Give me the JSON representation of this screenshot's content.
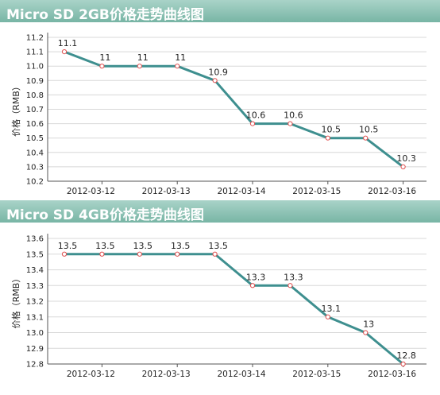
{
  "charts": [
    {
      "title": "Micro SD 2GB价格走势曲线图"
    },
    {
      "title": "Micro SD 4GB价格走势曲线图"
    }
  ],
  "colors": {
    "line": "#3e8f8f",
    "marker": "#e05050",
    "grid": "#d8d8d8",
    "axis": "#555555",
    "title_band": "#8cc4b6"
  },
  "chart_data": [
    {
      "type": "line",
      "title": "Micro SD 2GB价格走势曲线图",
      "xlabel": "",
      "ylabel": "价格（RMB）",
      "x_tick_labels": [
        "2012-03-12",
        "2012-03-13",
        "2012-03-14",
        "2012-03-15",
        "2012-03-16"
      ],
      "values": [
        11.1,
        11,
        11,
        11,
        10.9,
        10.6,
        10.6,
        10.5,
        10.5,
        10.3
      ],
      "value_labels": [
        "11.1",
        "11",
        "11",
        "11",
        "10.9",
        "10.6",
        "10.6",
        "10.5",
        "10.5",
        "10.3"
      ],
      "y_ticks": [
        "10.2",
        "10.3",
        "10.4",
        "10.5",
        "10.6",
        "10.7",
        "10.8",
        "10.9",
        "11.0",
        "11.1",
        "11.2"
      ],
      "ylim": [
        10.2,
        11.2
      ],
      "grid": true
    },
    {
      "type": "line",
      "title": "Micro SD 4GB价格走势曲线图",
      "xlabel": "",
      "ylabel": "价格（RMB）",
      "x_tick_labels": [
        "2012-03-12",
        "2012-03-13",
        "2012-03-14",
        "2012-03-15",
        "2012-03-16"
      ],
      "values": [
        13.5,
        13.5,
        13.5,
        13.5,
        13.5,
        13.3,
        13.3,
        13.1,
        13,
        12.8
      ],
      "value_labels": [
        "13.5",
        "13.5",
        "13.5",
        "13.5",
        "13.5",
        "13.3",
        "13.3",
        "13.1",
        "13",
        "12.8"
      ],
      "y_ticks": [
        "12.8",
        "12.9",
        "13.0",
        "13.1",
        "13.2",
        "13.3",
        "13.4",
        "13.5",
        "13.6"
      ],
      "ylim": [
        12.8,
        13.6
      ],
      "grid": true
    }
  ]
}
